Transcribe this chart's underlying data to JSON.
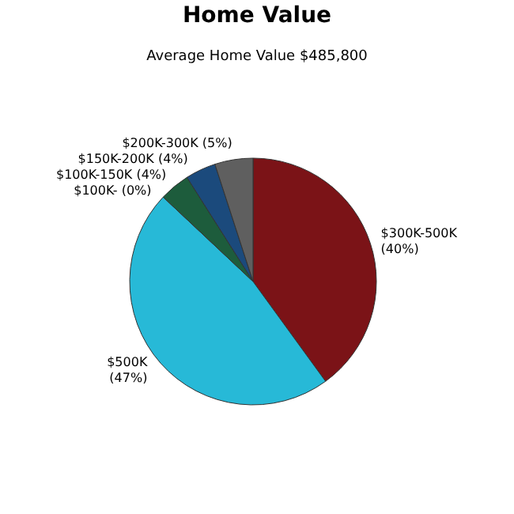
{
  "chart_data": {
    "type": "pie",
    "title": "Home Value",
    "subtitle": "Average Home Value  $485,800",
    "categories": [
      "$300K-500K",
      "$500K",
      "$100K-",
      "$100K-150K",
      "$150K-200K",
      "$200K-300K"
    ],
    "values": [
      40,
      47,
      0,
      4,
      4,
      5
    ],
    "value_labels": [
      "(40%)",
      "(47%)",
      "(0%)",
      "(4%)",
      "(4%)",
      "(5%)"
    ],
    "colors": [
      "#7b1317",
      "#27b9d7",
      "#7fbf3f",
      "#1d5c3c",
      "#1b4a7c",
      "#5f5f5f"
    ],
    "legend": false
  }
}
